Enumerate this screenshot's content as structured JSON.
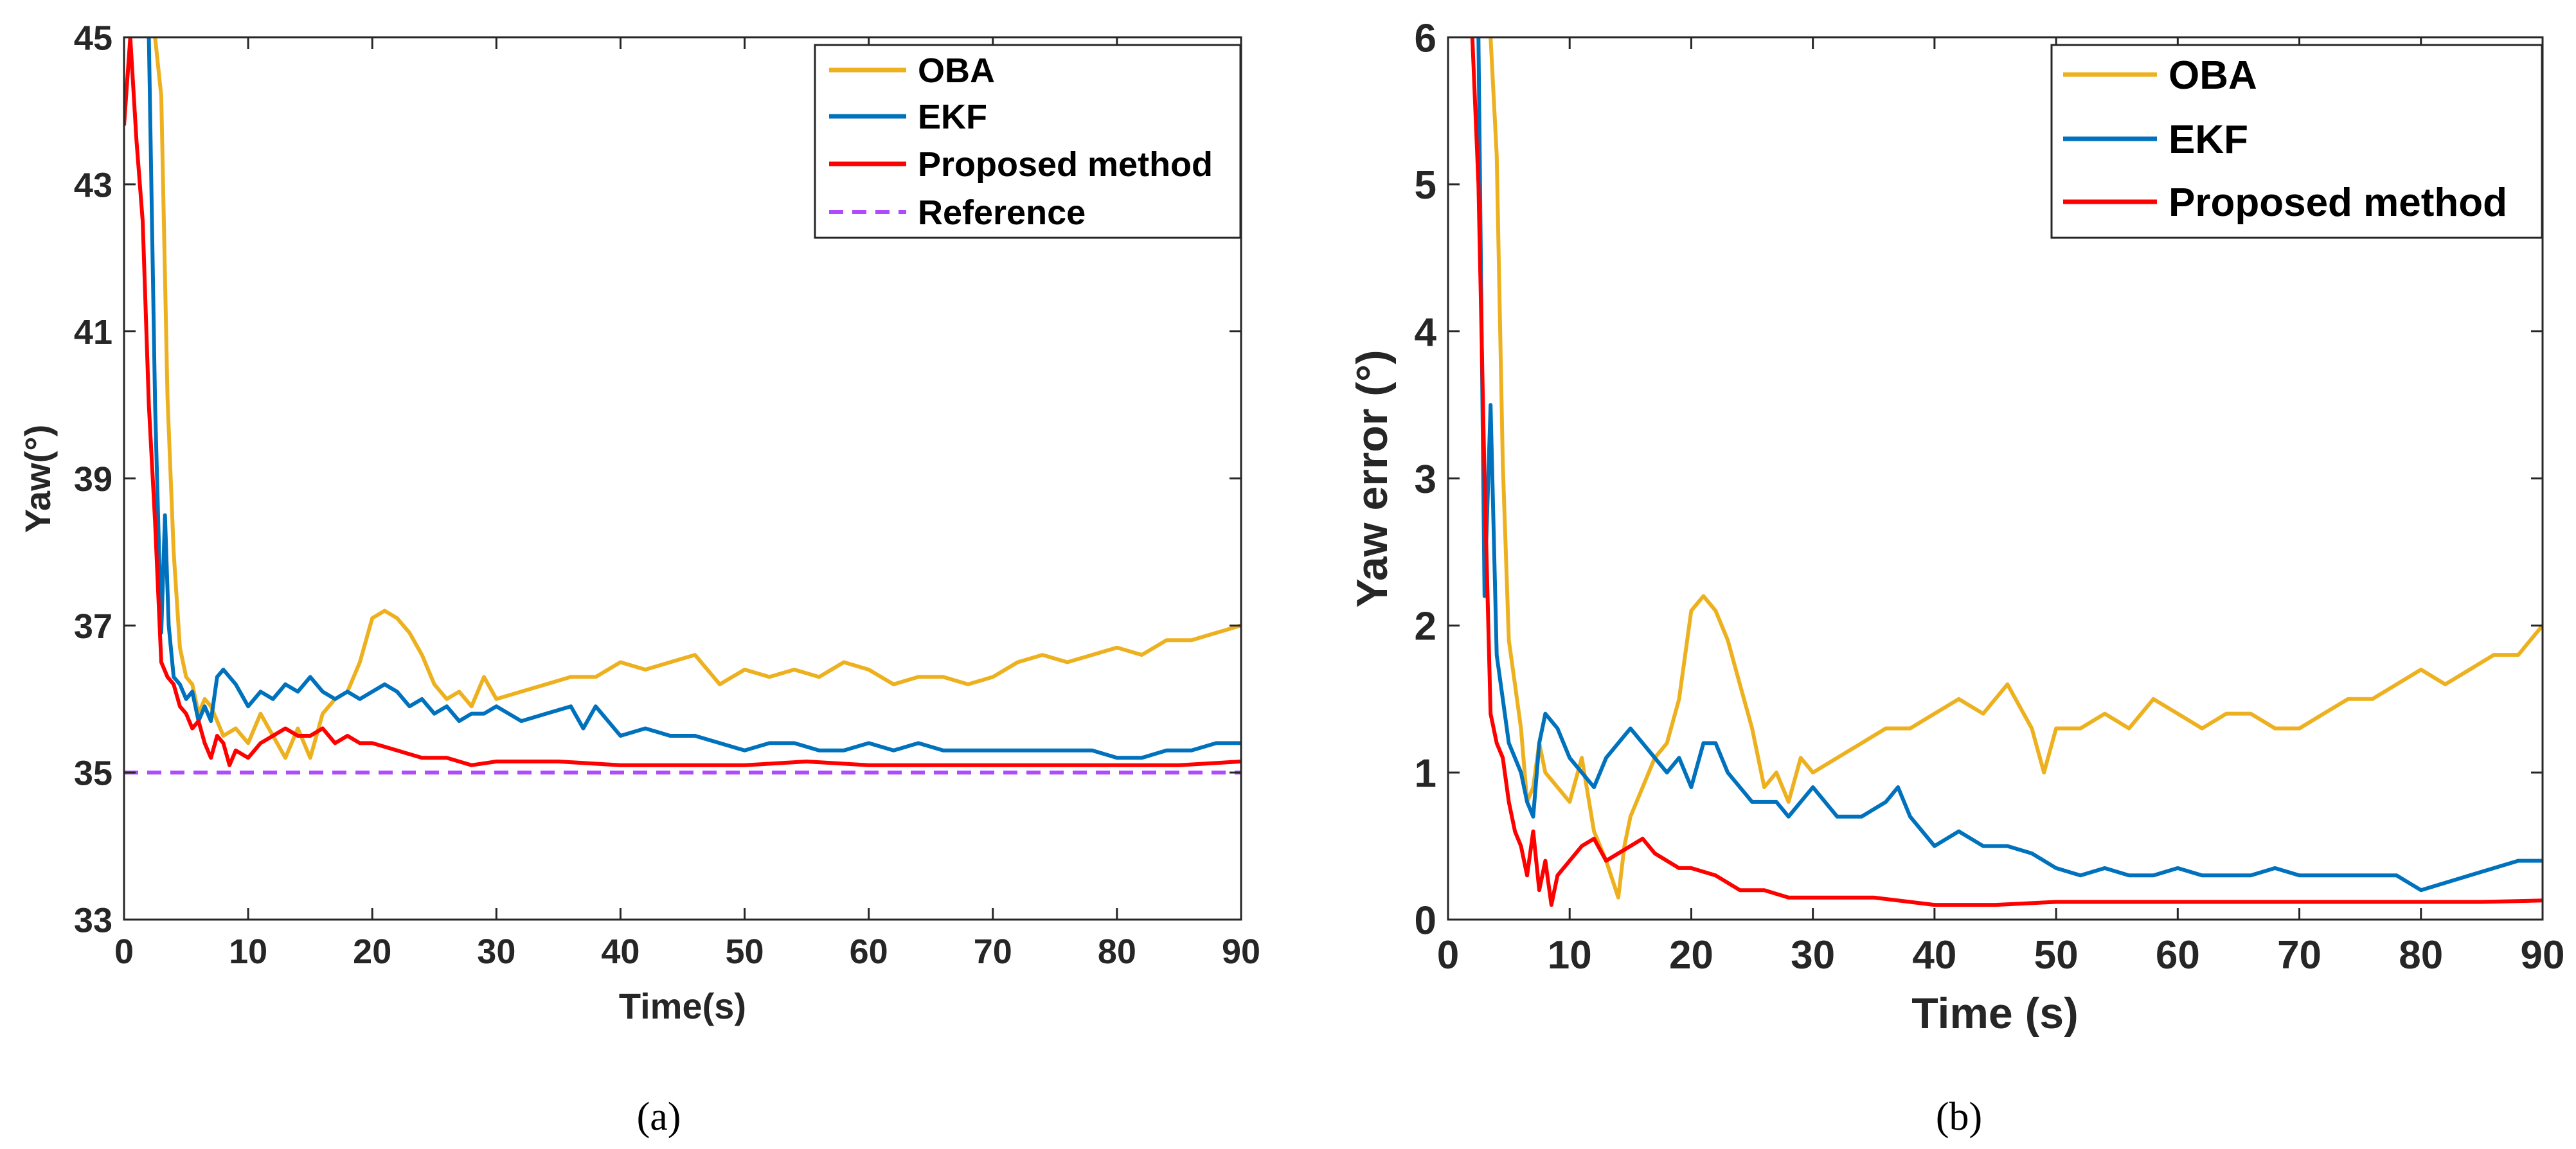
{
  "colors": {
    "oba": "#EDB120",
    "ekf": "#0072BD",
    "proposed": "#FF0000",
    "reference": "#B04AFF",
    "axis": "#262626"
  },
  "chart_data": [
    {
      "type": "line",
      "panel_label": "(a)",
      "xlabel": "Time(s)",
      "ylabel": "Yaw(°)",
      "xlim": [
        0,
        90
      ],
      "ylim": [
        33,
        45
      ],
      "xticks": [
        "0",
        "10",
        "20",
        "30",
        "40",
        "50",
        "60",
        "70",
        "80",
        "90"
      ],
      "yticks": [
        "33",
        "35",
        "37",
        "39",
        "41",
        "43",
        "45"
      ],
      "legend": {
        "position": "top-right",
        "entries": [
          "OBA",
          "EKF",
          "Proposed method",
          "Reference"
        ]
      },
      "series": [
        {
          "name": "OBA",
          "color_key": "oba",
          "style": "solid",
          "x": [
            2.5,
            3.0,
            3.5,
            4.0,
            4.5,
            5.0,
            5.5,
            6,
            6.5,
            7,
            8,
            9,
            10,
            11,
            12,
            13,
            14,
            15,
            16,
            17,
            18,
            19,
            20,
            21,
            22,
            23,
            24,
            25,
            26,
            27,
            28,
            29,
            30,
            32,
            34,
            36,
            38,
            40,
            42,
            44,
            46,
            48,
            50,
            52,
            54,
            56,
            58,
            60,
            62,
            64,
            66,
            68,
            70,
            72,
            74,
            76,
            78,
            80,
            82,
            84,
            86,
            88,
            90
          ],
          "y": [
            45,
            44.2,
            40.1,
            38.0,
            36.7,
            36.3,
            36.2,
            35.8,
            36.0,
            35.9,
            35.5,
            35.6,
            35.4,
            35.8,
            35.5,
            35.2,
            35.6,
            35.2,
            35.8,
            36.0,
            36.1,
            36.5,
            37.1,
            37.2,
            37.1,
            36.9,
            36.6,
            36.2,
            36.0,
            36.1,
            35.9,
            36.3,
            36.0,
            36.1,
            36.2,
            36.3,
            36.3,
            36.5,
            36.4,
            36.5,
            36.6,
            36.2,
            36.4,
            36.3,
            36.4,
            36.3,
            36.5,
            36.4,
            36.2,
            36.3,
            36.3,
            36.2,
            36.3,
            36.5,
            36.6,
            36.5,
            36.6,
            36.7,
            36.6,
            36.8,
            36.8,
            36.9,
            37.0
          ]
        },
        {
          "name": "EKF",
          "color_key": "ekf",
          "style": "solid",
          "x": [
            2,
            2.5,
            3,
            3.3,
            3.6,
            4,
            4.5,
            5,
            5.5,
            6,
            6.5,
            7,
            7.5,
            8,
            9,
            10,
            11,
            12,
            13,
            14,
            15,
            16,
            17,
            18,
            19,
            20,
            21,
            22,
            23,
            24,
            25,
            26,
            27,
            28,
            29,
            30,
            32,
            34,
            36,
            37,
            38,
            40,
            42,
            44,
            46,
            48,
            50,
            52,
            54,
            56,
            58,
            60,
            62,
            64,
            66,
            68,
            70,
            72,
            74,
            76,
            78,
            80,
            82,
            84,
            86,
            88,
            90
          ],
          "y": [
            45,
            40,
            36.9,
            38.5,
            37.0,
            36.3,
            36.2,
            36.0,
            36.1,
            35.7,
            35.9,
            35.7,
            36.3,
            36.4,
            36.2,
            35.9,
            36.1,
            36.0,
            36.2,
            36.1,
            36.3,
            36.1,
            36.0,
            36.1,
            36.0,
            36.1,
            36.2,
            36.1,
            35.9,
            36.0,
            35.8,
            35.9,
            35.7,
            35.8,
            35.8,
            35.9,
            35.7,
            35.8,
            35.9,
            35.6,
            35.9,
            35.5,
            35.6,
            35.5,
            35.5,
            35.4,
            35.3,
            35.4,
            35.4,
            35.3,
            35.3,
            35.4,
            35.3,
            35.4,
            35.3,
            35.3,
            35.3,
            35.3,
            35.3,
            35.3,
            35.3,
            35.2,
            35.2,
            35.3,
            35.3,
            35.4,
            35.4
          ]
        },
        {
          "name": "Proposed method",
          "color_key": "proposed",
          "style": "solid",
          "x": [
            0,
            0.5,
            1,
            1.5,
            2,
            2.5,
            3,
            3.5,
            4,
            4.5,
            5,
            5.5,
            6,
            6.5,
            7,
            7.5,
            8,
            8.5,
            9,
            10,
            11,
            12,
            13,
            14,
            15,
            16,
            17,
            18,
            19,
            20,
            22,
            24,
            26,
            28,
            30,
            35,
            40,
            45,
            50,
            55,
            60,
            65,
            70,
            75,
            80,
            85,
            90
          ],
          "y": [
            43.8,
            45,
            43.6,
            42.5,
            40.0,
            38.4,
            36.5,
            36.3,
            36.2,
            35.9,
            35.8,
            35.6,
            35.7,
            35.4,
            35.2,
            35.5,
            35.4,
            35.1,
            35.3,
            35.2,
            35.4,
            35.5,
            35.6,
            35.5,
            35.5,
            35.6,
            35.4,
            35.5,
            35.4,
            35.4,
            35.3,
            35.2,
            35.2,
            35.1,
            35.15,
            35.15,
            35.1,
            35.1,
            35.1,
            35.15,
            35.1,
            35.1,
            35.1,
            35.1,
            35.1,
            35.1,
            35.15
          ]
        },
        {
          "name": "Reference",
          "color_key": "reference",
          "style": "dashed",
          "x": [
            0,
            90
          ],
          "y": [
            35,
            35
          ]
        }
      ]
    },
    {
      "type": "line",
      "panel_label": "(b)",
      "xlabel": "Time (s)",
      "ylabel": "Yaw error (°)",
      "xlim": [
        0,
        90
      ],
      "ylim": [
        0,
        6
      ],
      "xticks": [
        "0",
        "10",
        "20",
        "30",
        "40",
        "50",
        "60",
        "70",
        "80",
        "90"
      ],
      "yticks": [
        "0",
        "1",
        "2",
        "3",
        "4",
        "5",
        "6"
      ],
      "legend": {
        "position": "top-right",
        "entries": [
          "OBA",
          "EKF",
          "Proposed method"
        ]
      },
      "series": [
        {
          "name": "OBA",
          "color_key": "oba",
          "style": "solid",
          "x": [
            3.5,
            4.0,
            4.5,
            5,
            5.5,
            6,
            6.5,
            7,
            7.5,
            8,
            9,
            10,
            11,
            12,
            13,
            14,
            14.5,
            15,
            16,
            17,
            18,
            19,
            20,
            21,
            22,
            23,
            24,
            25,
            26,
            27,
            28,
            29,
            30,
            32,
            34,
            36,
            38,
            40,
            42,
            44,
            46,
            48,
            49,
            50,
            52,
            54,
            56,
            58,
            60,
            62,
            64,
            66,
            68,
            70,
            72,
            74,
            76,
            78,
            80,
            82,
            84,
            86,
            88,
            90
          ],
          "y": [
            6,
            5.2,
            3.1,
            1.9,
            1.6,
            1.3,
            0.8,
            0.9,
            1.2,
            1.0,
            0.9,
            0.8,
            1.1,
            0.6,
            0.4,
            0.15,
            0.5,
            0.7,
            0.9,
            1.1,
            1.2,
            1.5,
            2.1,
            2.2,
            2.1,
            1.9,
            1.6,
            1.3,
            0.9,
            1.0,
            0.8,
            1.1,
            1.0,
            1.1,
            1.2,
            1.3,
            1.3,
            1.4,
            1.5,
            1.4,
            1.6,
            1.3,
            1.0,
            1.3,
            1.3,
            1.4,
            1.3,
            1.5,
            1.4,
            1.3,
            1.4,
            1.4,
            1.3,
            1.3,
            1.4,
            1.5,
            1.5,
            1.6,
            1.7,
            1.6,
            1.7,
            1.8,
            1.8,
            2.0
          ]
        },
        {
          "name": "EKF",
          "color_key": "ekf",
          "style": "solid",
          "x": [
            2.5,
            3,
            3.5,
            4,
            4.5,
            5,
            5.5,
            6,
            6.5,
            7,
            7.5,
            8,
            9,
            10,
            11,
            12,
            13,
            14,
            15,
            16,
            17,
            18,
            19,
            20,
            21,
            22,
            23,
            24,
            25,
            26,
            27,
            28,
            29,
            30,
            32,
            34,
            36,
            37,
            38,
            40,
            42,
            44,
            46,
            48,
            50,
            52,
            54,
            56,
            58,
            60,
            62,
            64,
            66,
            68,
            70,
            72,
            74,
            76,
            78,
            80,
            82,
            84,
            86,
            88,
            90
          ],
          "y": [
            6,
            2.2,
            3.5,
            1.8,
            1.5,
            1.2,
            1.1,
            1.0,
            0.8,
            0.7,
            1.2,
            1.4,
            1.3,
            1.1,
            1.0,
            0.9,
            1.1,
            1.2,
            1.3,
            1.2,
            1.1,
            1.0,
            1.1,
            0.9,
            1.2,
            1.2,
            1.0,
            0.9,
            0.8,
            0.8,
            0.8,
            0.7,
            0.8,
            0.9,
            0.7,
            0.7,
            0.8,
            0.9,
            0.7,
            0.5,
            0.6,
            0.5,
            0.5,
            0.45,
            0.35,
            0.3,
            0.35,
            0.3,
            0.3,
            0.35,
            0.3,
            0.3,
            0.3,
            0.35,
            0.3,
            0.3,
            0.3,
            0.3,
            0.3,
            0.2,
            0.25,
            0.3,
            0.35,
            0.4,
            0.4
          ]
        },
        {
          "name": "Proposed method",
          "color_key": "proposed",
          "style": "solid",
          "x": [
            2,
            2.5,
            3,
            3.5,
            4,
            4.5,
            5,
            5.5,
            6,
            6.5,
            7,
            7.5,
            8,
            8.5,
            9,
            10,
            11,
            12,
            13,
            14,
            15,
            16,
            17,
            18,
            19,
            20,
            22,
            24,
            26,
            28,
            30,
            35,
            40,
            45,
            50,
            55,
            60,
            65,
            70,
            75,
            80,
            85,
            90
          ],
          "y": [
            6,
            5.0,
            3.0,
            1.4,
            1.2,
            1.1,
            0.8,
            0.6,
            0.5,
            0.3,
            0.6,
            0.2,
            0.4,
            0.1,
            0.3,
            0.4,
            0.5,
            0.55,
            0.4,
            0.45,
            0.5,
            0.55,
            0.45,
            0.4,
            0.35,
            0.35,
            0.3,
            0.2,
            0.2,
            0.15,
            0.15,
            0.15,
            0.1,
            0.1,
            0.12,
            0.12,
            0.12,
            0.12,
            0.12,
            0.12,
            0.12,
            0.12,
            0.13
          ]
        }
      ]
    }
  ]
}
